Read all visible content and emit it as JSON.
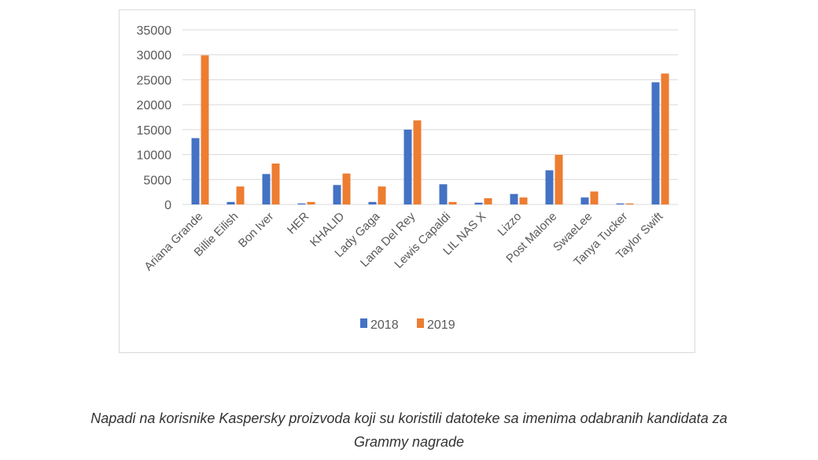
{
  "chart_data": {
    "type": "bar",
    "categories": [
      "Ariana Grande",
      "Billie Eilish",
      "Bon Iver",
      "HER",
      "KHALID",
      "Lady Gaga",
      "Lana Del Rey",
      "Lewis Capaldi",
      "LIL NAS X",
      "Lizzo",
      "Post Malone",
      "SwaeLee",
      "Tanya Tucker",
      "Taylor Swift"
    ],
    "series": [
      {
        "name": "2018",
        "color": "#4472c4",
        "values": [
          13300,
          500,
          6100,
          200,
          3900,
          500,
          15000,
          4050,
          350,
          2100,
          6850,
          1400,
          200,
          24500
        ]
      },
      {
        "name": "2019",
        "color": "#ed7d31",
        "values": [
          29900,
          3600,
          8200,
          500,
          6200,
          3600,
          16850,
          500,
          1250,
          1400,
          9950,
          2600,
          200,
          26250
        ]
      }
    ],
    "yticks": [
      "0",
      "5000",
      "10000",
      "15000",
      "20000",
      "25000",
      "30000",
      "35000"
    ],
    "ylim": [
      0,
      35000
    ],
    "grid": true,
    "legend": "bottom"
  },
  "caption": {
    "line1": "Napadi na korisnike Kaspersky proizvoda koji su koristili datoteke sa imenima odabranih kandidata za",
    "line2": "Grammy nagrade"
  }
}
